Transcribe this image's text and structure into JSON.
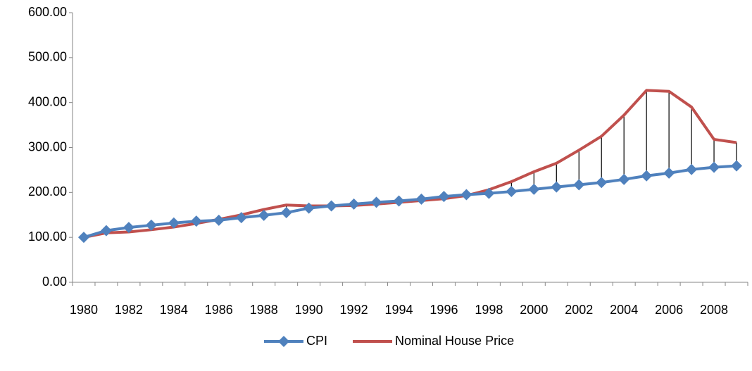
{
  "chart_data": {
    "type": "line",
    "categories": [
      "1980",
      null,
      "1982",
      null,
      "1984",
      null,
      "1986",
      null,
      "1988",
      null,
      "1990",
      null,
      "1992",
      null,
      "1994",
      null,
      "1996",
      null,
      "1998",
      null,
      "2000",
      null,
      "2002",
      null,
      "2004",
      null,
      "2006",
      null,
      "2008",
      null
    ],
    "series": [
      {
        "name": "CPI",
        "color": "#4f81bd",
        "marker": "diamond",
        "values": [
          100,
          115,
          122,
          127,
          132,
          136,
          138,
          144,
          149,
          155,
          165,
          170,
          174,
          178,
          181,
          185,
          191,
          195,
          198,
          202,
          207,
          212,
          217,
          222,
          229,
          237,
          243,
          251,
          256,
          259
        ]
      },
      {
        "name": "Nominal House Price",
        "color": "#c0504d",
        "values": [
          100,
          110,
          112,
          117,
          123,
          131,
          140,
          150,
          162,
          172,
          170,
          170,
          171,
          174,
          178,
          182,
          186,
          193,
          206,
          224,
          246,
          265,
          294,
          325,
          372,
          427,
          425,
          390,
          318,
          311
        ]
      }
    ],
    "drop_lines": true,
    "ylim": [
      0,
      600
    ],
    "yticks": [
      {
        "value": 0,
        "label": "0.00"
      },
      {
        "value": 100,
        "label": "100.00"
      },
      {
        "value": 200,
        "label": "200.00"
      },
      {
        "value": 300,
        "label": "300.00"
      },
      {
        "value": 400,
        "label": "400.00"
      },
      {
        "value": 500,
        "label": "500.00"
      },
      {
        "value": 600,
        "label": "600.00"
      }
    ],
    "legend": "bottom"
  }
}
